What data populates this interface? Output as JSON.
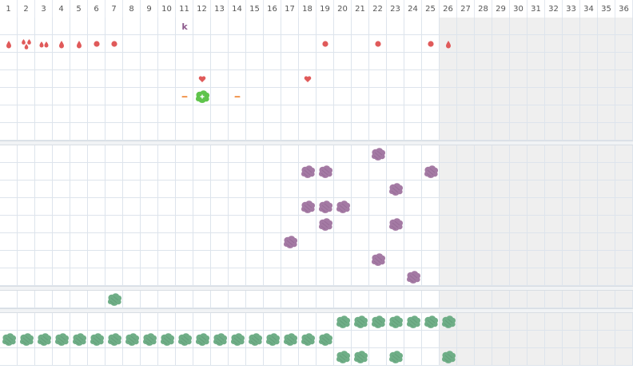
{
  "columns": [
    "1",
    "2",
    "3",
    "4",
    "5",
    "6",
    "7",
    "8",
    "9",
    "10",
    "11",
    "12",
    "13",
    "14",
    "15",
    "16",
    "17",
    "18",
    "19",
    "20",
    "21",
    "22",
    "23",
    "24",
    "25",
    "26",
    "27",
    "28",
    "29",
    "30",
    "31",
    "32",
    "33",
    "34",
    "35",
    "36"
  ],
  "shaded_from_column": 26,
  "colors": {
    "red": "#e05a5a",
    "purple": "#a47aa4",
    "green": "#6fae87",
    "lime": "#5fc44c",
    "orange": "#f08a3c",
    "letter": "#8c5a8c"
  },
  "sections": [
    {
      "name": "lane-1",
      "rows": 7,
      "markers": [
        {
          "row": 1,
          "col": 11,
          "icon": "letter-k-icon",
          "text": "k"
        },
        {
          "row": 2,
          "col": 1,
          "icon": "drop-icon"
        },
        {
          "row": 2,
          "col": 2,
          "icon": "triple-drop-icon"
        },
        {
          "row": 2,
          "col": 3,
          "icon": "double-drop-icon"
        },
        {
          "row": 2,
          "col": 4,
          "icon": "drop-icon"
        },
        {
          "row": 2,
          "col": 5,
          "icon": "drop-icon"
        },
        {
          "row": 2,
          "col": 6,
          "icon": "dot-icon"
        },
        {
          "row": 2,
          "col": 7,
          "icon": "dot-icon"
        },
        {
          "row": 2,
          "col": 19,
          "icon": "dot-icon"
        },
        {
          "row": 2,
          "col": 22,
          "icon": "dot-icon"
        },
        {
          "row": 2,
          "col": 25,
          "icon": "dot-icon"
        },
        {
          "row": 2,
          "col": 26,
          "icon": "drop-icon"
        },
        {
          "row": 4,
          "col": 12,
          "icon": "heart-icon"
        },
        {
          "row": 4,
          "col": 18,
          "icon": "heart-icon"
        },
        {
          "row": 5,
          "col": 11,
          "icon": "dash-icon"
        },
        {
          "row": 5,
          "col": 12,
          "icon": "player-icon"
        },
        {
          "row": 5,
          "col": 14,
          "icon": "dash-icon"
        }
      ]
    },
    {
      "name": "lane-2",
      "rows": 8,
      "markers": [
        {
          "row": 1,
          "col": 22,
          "icon": "purple-bush-icon"
        },
        {
          "row": 2,
          "col": 18,
          "icon": "purple-bush-icon"
        },
        {
          "row": 2,
          "col": 19,
          "icon": "purple-bush-icon"
        },
        {
          "row": 2,
          "col": 25,
          "icon": "purple-bush-icon"
        },
        {
          "row": 3,
          "col": 23,
          "icon": "purple-bush-icon"
        },
        {
          "row": 4,
          "col": 18,
          "icon": "purple-bush-icon"
        },
        {
          "row": 4,
          "col": 19,
          "icon": "purple-bush-icon"
        },
        {
          "row": 4,
          "col": 20,
          "icon": "purple-bush-icon"
        },
        {
          "row": 5,
          "col": 19,
          "icon": "purple-bush-icon"
        },
        {
          "row": 5,
          "col": 23,
          "icon": "purple-bush-icon"
        },
        {
          "row": 6,
          "col": 17,
          "icon": "purple-bush-icon"
        },
        {
          "row": 7,
          "col": 22,
          "icon": "purple-bush-icon"
        },
        {
          "row": 8,
          "col": 24,
          "icon": "purple-bush-icon"
        }
      ]
    },
    {
      "name": "lane-3",
      "rows": 1,
      "markers": [
        {
          "row": 1,
          "col": 7,
          "icon": "green-bush-icon"
        }
      ]
    },
    {
      "name": "lane-4",
      "rows": 3,
      "markers": [
        {
          "row": 1,
          "col": 20,
          "icon": "green-bush-icon"
        },
        {
          "row": 1,
          "col": 21,
          "icon": "green-bush-icon"
        },
        {
          "row": 1,
          "col": 22,
          "icon": "green-bush-icon"
        },
        {
          "row": 1,
          "col": 23,
          "icon": "green-bush-icon"
        },
        {
          "row": 1,
          "col": 24,
          "icon": "green-bush-icon"
        },
        {
          "row": 1,
          "col": 25,
          "icon": "green-bush-icon"
        },
        {
          "row": 1,
          "col": 26,
          "icon": "green-bush-icon"
        },
        {
          "row": 2,
          "col": 1,
          "icon": "green-bush-icon"
        },
        {
          "row": 2,
          "col": 2,
          "icon": "green-bush-icon"
        },
        {
          "row": 2,
          "col": 3,
          "icon": "green-bush-icon"
        },
        {
          "row": 2,
          "col": 4,
          "icon": "green-bush-icon"
        },
        {
          "row": 2,
          "col": 5,
          "icon": "green-bush-icon"
        },
        {
          "row": 2,
          "col": 6,
          "icon": "green-bush-icon"
        },
        {
          "row": 2,
          "col": 7,
          "icon": "green-bush-icon"
        },
        {
          "row": 2,
          "col": 8,
          "icon": "green-bush-icon"
        },
        {
          "row": 2,
          "col": 9,
          "icon": "green-bush-icon"
        },
        {
          "row": 2,
          "col": 10,
          "icon": "green-bush-icon"
        },
        {
          "row": 2,
          "col": 11,
          "icon": "green-bush-icon"
        },
        {
          "row": 2,
          "col": 12,
          "icon": "green-bush-icon"
        },
        {
          "row": 2,
          "col": 13,
          "icon": "green-bush-icon"
        },
        {
          "row": 2,
          "col": 14,
          "icon": "green-bush-icon"
        },
        {
          "row": 2,
          "col": 15,
          "icon": "green-bush-icon"
        },
        {
          "row": 2,
          "col": 16,
          "icon": "green-bush-icon"
        },
        {
          "row": 2,
          "col": 17,
          "icon": "green-bush-icon"
        },
        {
          "row": 2,
          "col": 18,
          "icon": "green-bush-icon"
        },
        {
          "row": 2,
          "col": 19,
          "icon": "green-bush-icon"
        },
        {
          "row": 3,
          "col": 20,
          "icon": "green-bush-icon"
        },
        {
          "row": 3,
          "col": 21,
          "icon": "green-bush-icon"
        },
        {
          "row": 3,
          "col": 23,
          "icon": "green-bush-icon"
        },
        {
          "row": 3,
          "col": 26,
          "icon": "green-bush-icon"
        }
      ]
    }
  ]
}
